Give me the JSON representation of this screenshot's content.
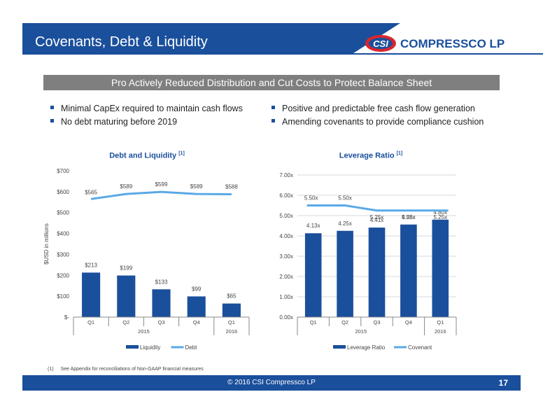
{
  "header": {
    "title": "Covenants, Debt & Liquidity",
    "brand": "COMPRESSCO LP",
    "brand_mark": "CSI",
    "color": "#1a4f9c",
    "accent": "#d7262d"
  },
  "banner": "Pro Actively Reduced Distribution and Cut Costs to Protect Balance Sheet",
  "bullets_left": [
    "Minimal CapEx required to maintain cash flows",
    "No debt maturing before 2019"
  ],
  "bullets_right": [
    "Positive and predictable free cash flow generation",
    "Amending covenants to provide compliance cushion"
  ],
  "chart_data": [
    {
      "type": "bar",
      "title": "Debt and Liquidity",
      "title_note": "[1]",
      "ylabel": "$USD in millions",
      "ylim": [
        0,
        700
      ],
      "yticks": [
        "$-",
        "$100",
        "$200",
        "$300",
        "$400",
        "$500",
        "$600",
        "$700"
      ],
      "categories": [
        "Q1",
        "Q2",
        "Q3",
        "Q4",
        "Q1"
      ],
      "years": [
        "2015",
        "2016"
      ],
      "series": [
        {
          "name": "Liquidity",
          "type": "bar",
          "values": [
            213,
            199,
            133,
            99,
            65
          ],
          "labels": [
            "$213",
            "$199",
            "$133",
            "$99",
            "$65"
          ],
          "color": "#1a4f9c"
        },
        {
          "name": "Debt",
          "type": "line",
          "values": [
            565,
            589,
            599,
            589,
            588
          ],
          "labels": [
            "$565",
            "$589",
            "$599",
            "$589",
            "$588"
          ],
          "color": "#5aa9e6"
        }
      ]
    },
    {
      "type": "bar",
      "title": "Leverage Ratio",
      "title_note": "[1]",
      "ylim": [
        0,
        7
      ],
      "yticks": [
        "0.00x",
        "1.00x",
        "2.00x",
        "3.00x",
        "4.00x",
        "5.00x",
        "6.00x",
        "7.00x"
      ],
      "categories": [
        "Q1",
        "Q2",
        "Q3",
        "Q4",
        "Q1"
      ],
      "years": [
        "2015",
        "2016"
      ],
      "series": [
        {
          "name": "Leverage Ratio",
          "type": "bar",
          "values": [
            4.13,
            4.25,
            4.41,
            4.56,
            4.8
          ],
          "labels": [
            "4.13x",
            "4.25x",
            "4.41x",
            "4.56x",
            "4.80x"
          ],
          "color": "#1a4f9c"
        },
        {
          "name": "Covenant",
          "type": "line",
          "values": [
            5.5,
            5.5,
            5.25,
            5.25,
            5.25
          ],
          "labels": [
            "5.50x",
            "5.50x",
            "5.25x",
            "5.25x",
            "5.25x"
          ],
          "color": "#5aa9e6"
        }
      ]
    }
  ],
  "footnote": {
    "num": "(1)",
    "text": "See Appendix for reconciliations of Non-GAAP financial measures"
  },
  "footer": {
    "text": "© 2016 CSI Compressco LP",
    "page": "17"
  }
}
